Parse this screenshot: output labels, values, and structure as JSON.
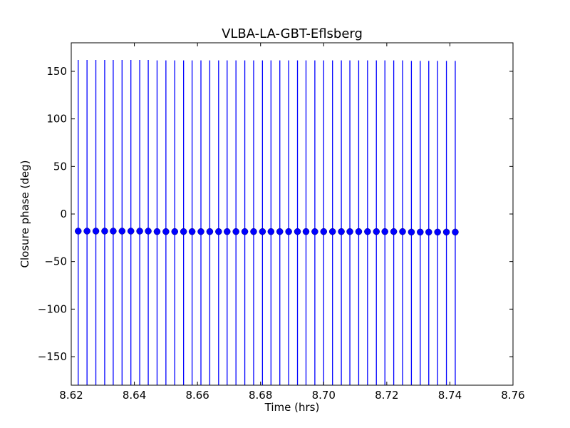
{
  "chart_data": {
    "type": "scatter",
    "title": "VLBA-LA-GBT-Eflsberg",
    "xlabel": "Time (hrs)",
    "ylabel": "Closure phase (deg)",
    "xlim": [
      8.62,
      8.76
    ],
    "ylim": [
      -180,
      180
    ],
    "xticks": [
      8.62,
      8.64,
      8.66,
      8.68,
      8.7,
      8.72,
      8.74,
      8.76
    ],
    "xtick_labels": [
      "8.62",
      "8.64",
      "8.66",
      "8.68",
      "8.70",
      "8.72",
      "8.74",
      "8.76"
    ],
    "yticks": [
      -150,
      -100,
      -50,
      0,
      50,
      100,
      150
    ],
    "ytick_labels": [
      "−150",
      "−100",
      "−50",
      "0",
      "50",
      "100",
      "150"
    ],
    "grid": false,
    "color": "#0000ff",
    "error_bars": "full-range vertical bars spanning the plot",
    "series": [
      {
        "x": [
          8.6222,
          8.625,
          8.6278,
          8.6306,
          8.6333,
          8.6361,
          8.6389,
          8.6417,
          8.6444,
          8.6472,
          8.65,
          8.6528,
          8.6556,
          8.6583,
          8.6611,
          8.6639,
          8.6667,
          8.6694,
          8.6722,
          8.675,
          8.6778,
          8.6806,
          8.6833,
          8.6861,
          8.6889,
          8.6917,
          8.6944,
          8.6972,
          8.7,
          8.7028,
          8.7056,
          8.7083,
          8.7111,
          8.7139,
          8.7167,
          8.7194,
          8.7222,
          8.725,
          8.7278,
          8.7306,
          8.7333,
          8.7361,
          8.7389,
          8.7417
        ],
        "y": [
          -18.0,
          -18.0,
          -18.0,
          -18.0,
          -18.0,
          -18.0,
          -18.0,
          -18.0,
          -18.0,
          -18.5,
          -18.5,
          -18.5,
          -18.5,
          -18.5,
          -18.5,
          -18.5,
          -18.5,
          -18.5,
          -18.5,
          -18.5,
          -18.5,
          -18.5,
          -18.5,
          -18.5,
          -18.5,
          -18.5,
          -18.5,
          -18.5,
          -18.5,
          -18.5,
          -18.5,
          -18.5,
          -18.5,
          -18.5,
          -18.5,
          -18.5,
          -18.5,
          -18.5,
          -19.0,
          -19.0,
          -19.0,
          -19.0,
          -19.0,
          -19.0
        ],
        "yerr": 180
      }
    ]
  }
}
